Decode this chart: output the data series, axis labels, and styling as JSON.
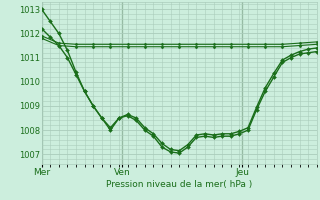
{
  "bg_color": "#cceedd",
  "grid_color": "#aaccbb",
  "line_color": "#1a6e1a",
  "marker_color": "#1a6e1a",
  "vline_color": "#336633",
  "xlabel": "Pression niveau de la mer( hPa )",
  "ylim": [
    1006.6,
    1013.3
  ],
  "yticks": [
    1007,
    1008,
    1009,
    1010,
    1011,
    1012,
    1013
  ],
  "xtick_labels": [
    "Mer",
    "Ven",
    "Jeu"
  ],
  "xtick_positions": [
    0,
    28,
    70
  ],
  "total_hours": 96,
  "series": [
    {
      "x": [
        0,
        6,
        12,
        18,
        24,
        30,
        36,
        42,
        48,
        54,
        60,
        66,
        72,
        78,
        84,
        90,
        96
      ],
      "y": [
        1011.9,
        1011.6,
        1011.55,
        1011.55,
        1011.55,
        1011.55,
        1011.55,
        1011.55,
        1011.55,
        1011.55,
        1011.55,
        1011.55,
        1011.55,
        1011.55,
        1011.55,
        1011.6,
        1011.65
      ],
      "lw": 0.8,
      "ms": 1.5,
      "marker": "D"
    },
    {
      "x": [
        0,
        6,
        12,
        18,
        24,
        30,
        36,
        42,
        48,
        54,
        60,
        66,
        72,
        78,
        84,
        90,
        96
      ],
      "y": [
        1011.8,
        1011.5,
        1011.45,
        1011.45,
        1011.45,
        1011.45,
        1011.45,
        1011.45,
        1011.45,
        1011.45,
        1011.45,
        1011.45,
        1011.45,
        1011.45,
        1011.45,
        1011.5,
        1011.55
      ],
      "lw": 0.8,
      "ms": 1.5,
      "marker": "D"
    },
    {
      "x": [
        0,
        3,
        6,
        9,
        12,
        15,
        18,
        21,
        24,
        27,
        30,
        33,
        36,
        39,
        42,
        45,
        48,
        51,
        54,
        57,
        60,
        63,
        66,
        69,
        72,
        75,
        78,
        81,
        84,
        87,
        90,
        93,
        96
      ],
      "y": [
        1012.2,
        1011.85,
        1011.5,
        1011.0,
        1010.3,
        1009.6,
        1009.0,
        1008.5,
        1008.0,
        1008.5,
        1008.6,
        1008.4,
        1008.0,
        1007.75,
        1007.3,
        1007.1,
        1007.05,
        1007.3,
        1007.7,
        1007.75,
        1007.7,
        1007.75,
        1007.75,
        1007.85,
        1008.0,
        1008.85,
        1009.6,
        1010.2,
        1010.8,
        1011.0,
        1011.15,
        1011.2,
        1011.25
      ],
      "lw": 1.0,
      "ms": 2.0,
      "marker": "D"
    },
    {
      "x": [
        0,
        3,
        6,
        9,
        12,
        15,
        18,
        21,
        24,
        27,
        30,
        33,
        36,
        39,
        42,
        45,
        48,
        51,
        54,
        57,
        60,
        63,
        66,
        69,
        72,
        75,
        78,
        81,
        84,
        87,
        90,
        93,
        96
      ],
      "y": [
        1013.0,
        1012.5,
        1012.0,
        1011.3,
        1010.4,
        1009.6,
        1009.0,
        1008.5,
        1008.1,
        1008.5,
        1008.65,
        1008.5,
        1008.1,
        1007.85,
        1007.45,
        1007.2,
        1007.15,
        1007.4,
        1007.8,
        1007.85,
        1007.8,
        1007.85,
        1007.85,
        1007.95,
        1008.1,
        1008.95,
        1009.75,
        1010.35,
        1010.9,
        1011.1,
        1011.25,
        1011.35,
        1011.4
      ],
      "lw": 1.0,
      "ms": 2.0,
      "marker": "D"
    }
  ]
}
